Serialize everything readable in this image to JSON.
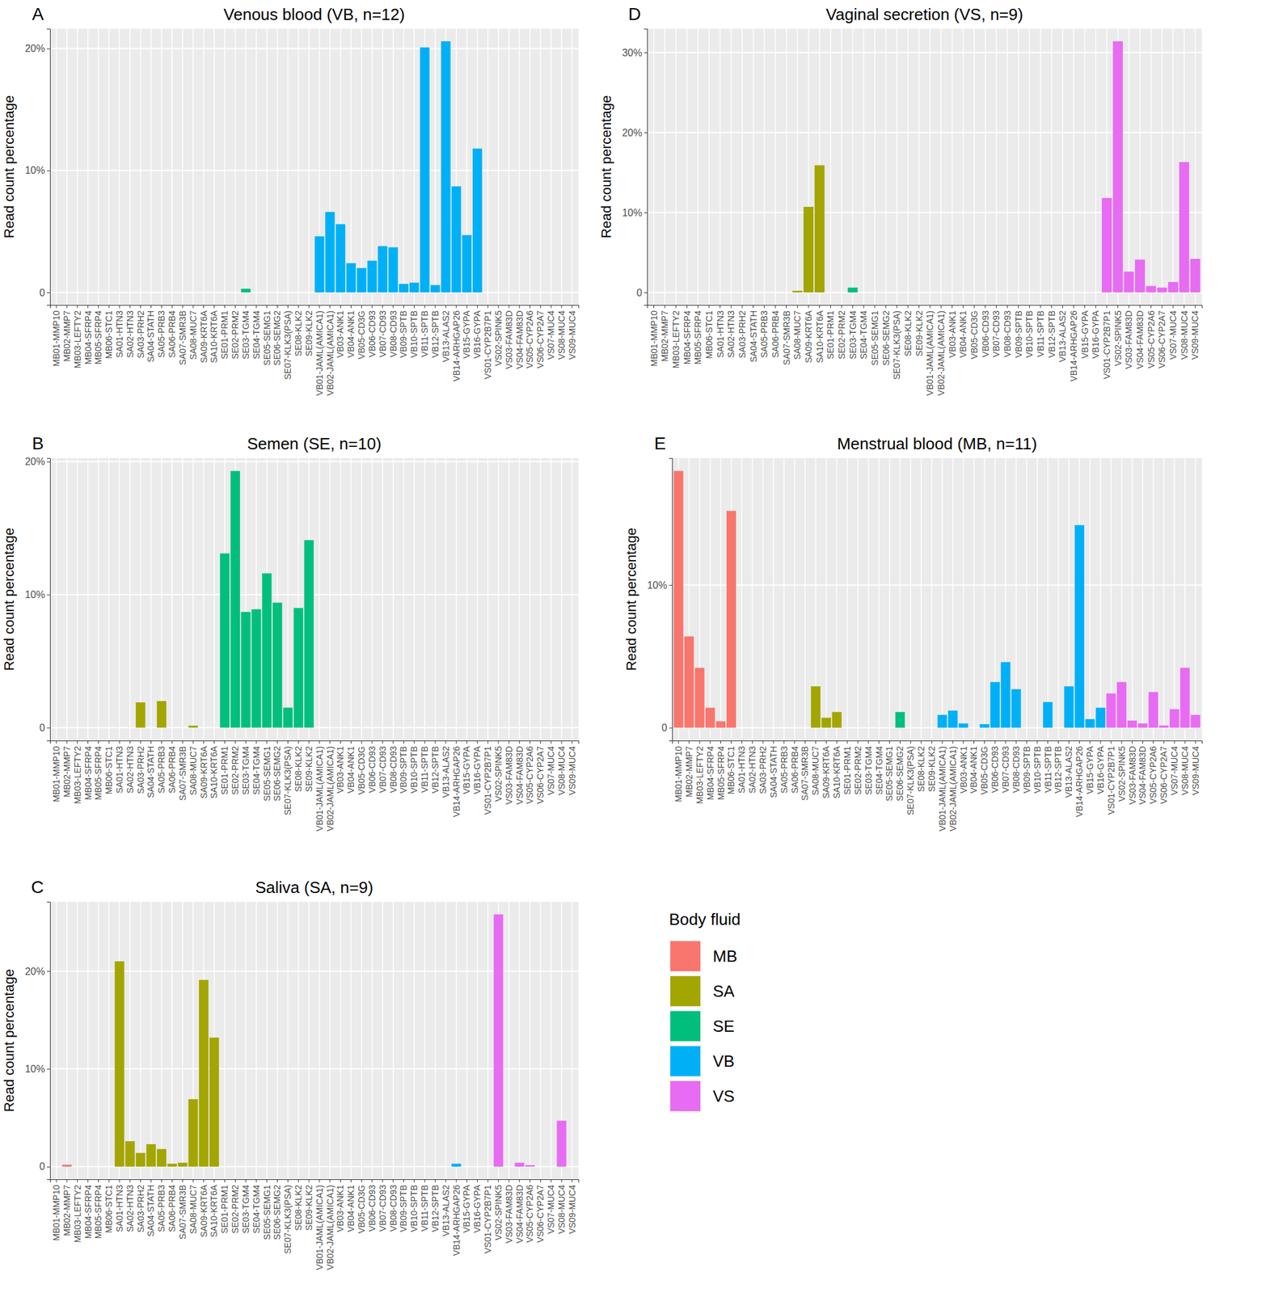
{
  "chart_data": [
    {
      "type": "bar",
      "panel": "A",
      "title": "Venous blood (VB, n=12)",
      "ylabel": "Read count percentage",
      "categories": [
        "MB01-MMP10",
        "MB02-MMP7",
        "MB03-LEFTY2",
        "MB04-SFRP4",
        "MB05-SFRP4",
        "MB06-STC1",
        "SA01-HTN3",
        "SA02-HTN3",
        "SA03-PRH2",
        "SA04-STATH",
        "SA05-PRB3",
        "SA06-PRB4",
        "SA07-SMR3B",
        "SA08-MUC7",
        "SA09-KRT6A",
        "SA10-KRT6A",
        "SE01-PRM1",
        "SE02-PRM2",
        "SE03-TGM4",
        "SE04-TGM4",
        "SE05-SEMG1",
        "SE06-SEMG2",
        "SE07-KLK3(PSA)",
        "SE08-KLK2",
        "SE09-KLK2",
        "VB01-JAML(AMICA1)",
        "VB02-JAML(AMICA1)",
        "VB03-ANK1",
        "VB04-ANK1",
        "VB05-CD3G",
        "VB06-CD93",
        "VB07-CD93",
        "VB08-CD93",
        "VB09-SPTB",
        "VB10-SPTB",
        "VB11-SPTB",
        "VB12-SPTB",
        "VB13-ALAS2",
        "VB14-ARHGAP26",
        "VB15-GYPA",
        "VB16-GYPA",
        "VS01-CYP2B7P1",
        "VS02-SPINK5",
        "VS03-FAM83D",
        "VS04-FAM83D",
        "VS05-CYP2A6",
        "VS06-CYP2A7",
        "VS07-MUC4",
        "VS08-MUC4",
        "VS09-MUC4"
      ],
      "values": [
        0,
        0,
        0,
        0,
        0,
        0,
        0,
        0,
        0,
        0,
        0,
        0,
        0,
        0,
        0,
        0,
        0,
        0,
        0.3,
        0,
        0,
        0,
        0,
        0,
        0,
        4.6,
        6.6,
        5.6,
        2.4,
        2.0,
        2.6,
        3.8,
        3.7,
        0.7,
        0.8,
        20.1,
        0.6,
        20.6,
        8.7,
        4.7,
        11.8,
        0,
        0,
        0,
        0,
        0,
        0,
        0,
        0,
        0
      ],
      "ylim": [
        -1.03,
        21.63
      ],
      "yticks": [
        0,
        {
          "value": 10,
          "label": "10%"
        },
        {
          "value": 20,
          "label": "20%"
        }
      ],
      "grid": true
    },
    {
      "type": "bar",
      "panel": "B",
      "title": "Semen (SE, n=10)",
      "ylabel": "Read count percentage",
      "categories": [
        "MB01-MMP10",
        "MB02-MMP7",
        "MB03-LEFTY2",
        "MB04-SFRP4",
        "MB05-SFRP4",
        "MB06-STC1",
        "SA01-HTN3",
        "SA02-HTN3",
        "SA03-PRH2",
        "SA04-STATH",
        "SA05-PRB3",
        "SA06-PRB4",
        "SA07-SMR3B",
        "SA08-MUC7",
        "SA09-KRT6A",
        "SA10-KRT6A",
        "SE01-PRM1",
        "SE02-PRM2",
        "SE03-TGM4",
        "SE04-TGM4",
        "SE05-SEMG1",
        "SE06-SEMG2",
        "SE07-KLK3(PSA)",
        "SE08-KLK2",
        "SE09-KLK2",
        "VB01-JAML(AMICA1)",
        "VB02-JAML(AMICA1)",
        "VB03-ANK1",
        "VB04-ANK1",
        "VB05-CD3G",
        "VB06-CD93",
        "VB07-CD93",
        "VB08-CD93",
        "VB09-SPTB",
        "VB10-SPTB",
        "VB11-SPTB",
        "VB12-SPTB",
        "VB13-ALAS2",
        "VB14-ARHGAP26",
        "VB15-GYPA",
        "VB16-GYPA",
        "VS01-CYP2B7P1",
        "VS02-SPINK5",
        "VS03-FAM83D",
        "VS04-FAM83D",
        "VS05-CYP2A6",
        "VS06-CYP2A7",
        "VS07-MUC4",
        "VS08-MUC4",
        "VS09-MUC4"
      ],
      "values": [
        0,
        0,
        0,
        0,
        0,
        0,
        0,
        0,
        1.9,
        0,
        2.0,
        0,
        0,
        0.15,
        0,
        0,
        13.1,
        19.3,
        8.7,
        8.9,
        11.6,
        9.4,
        1.5,
        9.0,
        14.1,
        0,
        0,
        0,
        0,
        0,
        0,
        0,
        0,
        0,
        0,
        0,
        0,
        0,
        0,
        0,
        0,
        0,
        0,
        0,
        0,
        0,
        0,
        0,
        0,
        0
      ],
      "ylim": [
        -0.97,
        20.27
      ],
      "yticks": [
        0,
        {
          "value": 10,
          "label": "10%"
        },
        {
          "value": 20,
          "label": "20%"
        }
      ],
      "grid": true
    },
    {
      "type": "bar",
      "panel": "C",
      "title": "Saliva (SA, n=9)",
      "ylabel": "Read count percentage",
      "categories": [
        "MB01-MMP10",
        "MB02-MMP7",
        "MB03-LEFTY2",
        "MB04-SFRP4",
        "MB05-SFRP4",
        "MB06-STC1",
        "SA01-HTN3",
        "SA02-HTN3",
        "SA03-PRH2",
        "SA04-STATH",
        "SA05-PRB3",
        "SA06-PRB4",
        "SA07-SMR3B",
        "SA08-MUC7",
        "SA09-KRT6A",
        "SA10-KRT6A",
        "SE01-PRM1",
        "SE02-PRM2",
        "SE03-TGM4",
        "SE04-TGM4",
        "SE05-SEMG1",
        "SE06-SEMG2",
        "SE07-KLK3(PSA)",
        "SE08-KLK2",
        "SE09-KLK2",
        "VB01-JAML(AMICA1)",
        "VB02-JAML(AMICA1)",
        "VB03-ANK1",
        "VB04-ANK1",
        "VB05-CD3G",
        "VB06-CD93",
        "VB07-CD93",
        "VB08-CD93",
        "VB09-SPTB",
        "VB10-SPTB",
        "VB11-SPTB",
        "VB12-SPTB",
        "VB13-ALAS2",
        "VB14-ARHGAP26",
        "VB15-GYPA",
        "VB16-GYPA",
        "VS01-CYP2B7P1",
        "VS02-SPINK5",
        "VS03-FAM83D",
        "VS04-FAM83D",
        "VS05-CYP2A6",
        "VS06-CYP2A7",
        "VS07-MUC4",
        "VS08-MUC4",
        "VS09-MUC4"
      ],
      "values": [
        0,
        0.2,
        0,
        0,
        0,
        0,
        21.0,
        2.6,
        1.4,
        2.3,
        1.8,
        0.3,
        0.4,
        6.9,
        19.1,
        13.2,
        0,
        0,
        0,
        0,
        0,
        0,
        0,
        0,
        0,
        0,
        0,
        0,
        0,
        0,
        0,
        0,
        0,
        0,
        0,
        0,
        0,
        0,
        0.3,
        0,
        0,
        0,
        25.8,
        0,
        0.4,
        0.15,
        0,
        0,
        4.7,
        0
      ],
      "ylim": [
        -1.29,
        27.09
      ],
      "yticks": [
        0,
        {
          "value": 10,
          "label": "10%"
        },
        {
          "value": 20,
          "label": "20%"
        }
      ],
      "grid": true
    },
    {
      "type": "bar",
      "panel": "D",
      "title": "Vaginal secretion (VS, n=9)",
      "ylabel": "Read count percentage",
      "categories": [
        "MB01-MMP10",
        "MB02-MMP7",
        "MB03-LEFTY2",
        "MB04-SFRP4",
        "MB05-SFRP4",
        "MB06-STC1",
        "SA01-HTN3",
        "SA02-HTN3",
        "SA03-PRH2",
        "SA04-STATH",
        "SA05-PRB3",
        "SA06-PRB4",
        "SA07-SMR3B",
        "SA08-MUC7",
        "SA09-KRT6A",
        "SA10-KRT6A",
        "SE01-PRM1",
        "SE02-PRM2",
        "SE03-TGM4",
        "SE04-TGM4",
        "SE05-SEMG1",
        "SE06-SEMG2",
        "SE07-KLK3(PSA)",
        "SE08-KLK2",
        "SE09-KLK2",
        "VB01-JAML(AMICA1)",
        "VB02-JAML(AMICA1)",
        "VB03-ANK1",
        "VB04-ANK1",
        "VB05-CD3G",
        "VB06-CD93",
        "VB07-CD93",
        "VB08-CD93",
        "VB09-SPTB",
        "VB10-SPTB",
        "VB11-SPTB",
        "VB12-SPTB",
        "VB13-ALAS2",
        "VB14-ARHGAP26",
        "VB15-GYPA",
        "VB16-GYPA",
        "VS01-CYP2B7P1",
        "VS02-SPINK5",
        "VS03-FAM83D",
        "VS04-FAM83D",
        "VS05-CYP2A6",
        "VS06-CYP2A7",
        "VS07-MUC4",
        "VS08-MUC4",
        "VS09-MUC4"
      ],
      "values": [
        0,
        0,
        0,
        0,
        0,
        0,
        0,
        0,
        0,
        0,
        0,
        0,
        0,
        0.2,
        10.7,
        15.9,
        0,
        0,
        0.6,
        0,
        0,
        0,
        0,
        0,
        0,
        0,
        0,
        0,
        0,
        0,
        0,
        0,
        0,
        0,
        0,
        0,
        0,
        0,
        0,
        0,
        0,
        11.8,
        31.4,
        2.6,
        4.1,
        0.8,
        0.6,
        1.3,
        16.3,
        4.2
      ],
      "ylim": [
        -1.57,
        32.97
      ],
      "yticks": [
        0,
        {
          "value": 10,
          "label": "10%"
        },
        {
          "value": 20,
          "label": "20%"
        },
        {
          "value": 30,
          "label": "30%"
        }
      ],
      "grid": true
    },
    {
      "type": "bar",
      "panel": "E",
      "title": "Menstrual blood (MB, n=11)",
      "ylabel": "Read count percentage",
      "categories": [
        "MB01-MMP10",
        "MB02-MMP7",
        "MB03-LEFTY2",
        "MB04-SFRP4",
        "MB05-SFRP4",
        "MB06-STC1",
        "SA01-HTN3",
        "SA02-HTN3",
        "SA03-PRH2",
        "SA04-STATH",
        "SA05-PRB3",
        "SA06-PRB4",
        "SA07-SMR3B",
        "SA08-MUC7",
        "SA09-KRT6A",
        "SA10-KRT6A",
        "SE01-PRM1",
        "SE02-PRM2",
        "SE03-TGM4",
        "SE04-TGM4",
        "SE05-SEMG1",
        "SE06-SEMG2",
        "SE07-KLK3(PSA)",
        "SE08-KLK2",
        "SE09-KLK2",
        "VB01-JAML(AMICA1)",
        "VB02-JAML(AMICA1)",
        "VB03-ANK1",
        "VB04-ANK1",
        "VB05-CD3G",
        "VB06-CD93",
        "VB07-CD93",
        "VB08-CD93",
        "VB09-SPTB",
        "VB10-SPTB",
        "VB11-SPTB",
        "VB12-SPTB",
        "VB13-ALAS2",
        "VB14-ARHGAP26",
        "VB15-GYPA",
        "VB16-GYPA",
        "VS01-CYP2B7P1",
        "VS02-SPINK5",
        "VS03-FAM83D",
        "VS04-FAM83D",
        "VS05-CYP2A6",
        "VS06-CYP2A7",
        "VS07-MUC4",
        "VS08-MUC4",
        "VS09-MUC4"
      ],
      "values": [
        18.0,
        6.4,
        4.2,
        1.4,
        0.45,
        15.2,
        0,
        0,
        0,
        0,
        0,
        0,
        0,
        2.9,
        0.7,
        1.1,
        0,
        0,
        0,
        0,
        0,
        1.1,
        0,
        0,
        0,
        0.9,
        1.2,
        0.3,
        0,
        0.25,
        3.2,
        4.6,
        2.7,
        0,
        0,
        1.8,
        0,
        2.9,
        14.2,
        0.6,
        1.4,
        2.4,
        3.2,
        0.5,
        0.3,
        2.5,
        0.15,
        1.3,
        4.2,
        0.9
      ],
      "ylim": [
        -0.9,
        18.9
      ],
      "yticks": [
        0,
        {
          "value": 10,
          "label": "10%"
        }
      ],
      "grid": true
    }
  ],
  "legend_box": {
    "title": "Body fluid",
    "items": [
      {
        "name": "MB",
        "color": "#F8766D"
      },
      {
        "name": "SA",
        "color": "#A3A500"
      },
      {
        "name": "SE",
        "color": "#00BF7D"
      },
      {
        "name": "VB",
        "color": "#00B0F6"
      },
      {
        "name": "VS",
        "color": "#E76BF3"
      }
    ]
  }
}
